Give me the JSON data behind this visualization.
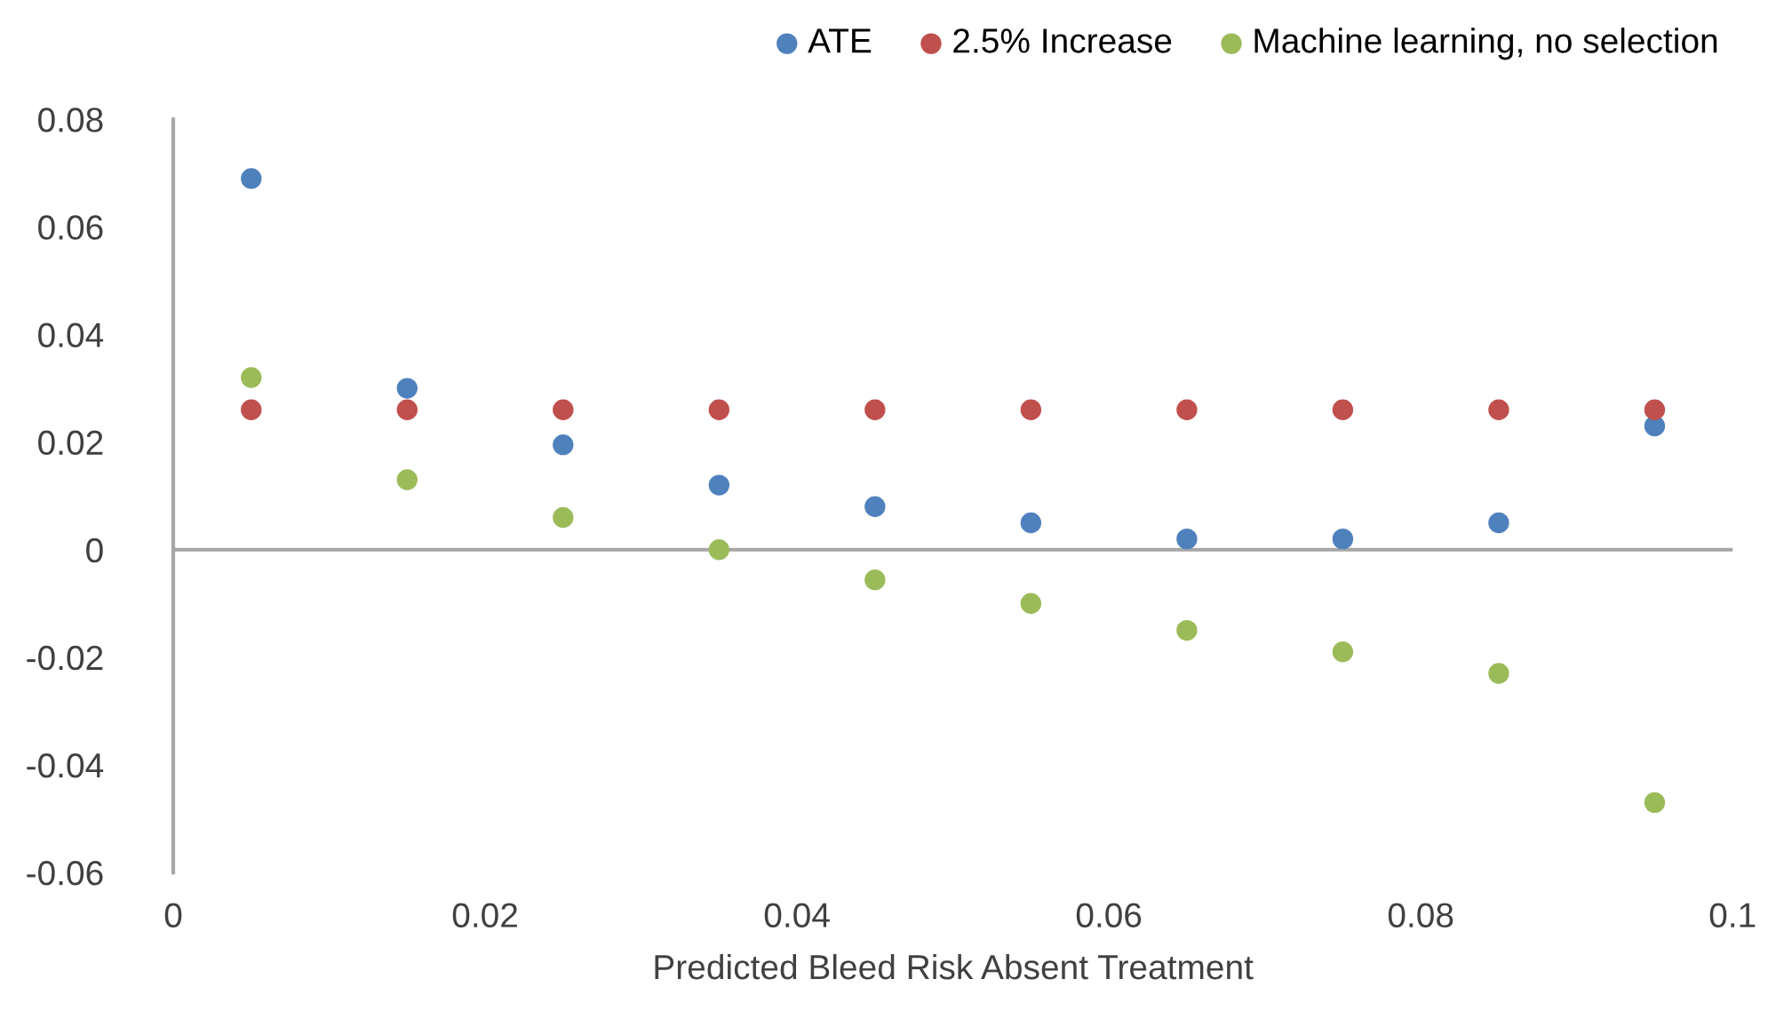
{
  "chart_data": {
    "type": "scatter",
    "xlabel": "Predicted Bleed Risk Absent Treatment",
    "x": [
      0.005,
      0.015,
      0.025,
      0.035,
      0.045,
      0.055,
      0.065,
      0.075,
      0.085,
      0.095
    ],
    "series": [
      {
        "name": "ATE",
        "color": "#4f81bd",
        "values": [
          0.069,
          0.03,
          0.0195,
          0.012,
          0.008,
          0.005,
          0.002,
          0.002,
          0.005,
          0.023
        ]
      },
      {
        "name": "2.5% Increase",
        "color": "#c0504d",
        "values": [
          0.026,
          0.026,
          0.026,
          0.026,
          0.026,
          0.026,
          0.026,
          0.026,
          0.026,
          0.026
        ]
      },
      {
        "name": "Machine learning, no selection",
        "color": "#9bbb59",
        "values": [
          0.032,
          0.013,
          0.006,
          0.0,
          -0.0056,
          -0.01,
          -0.015,
          -0.019,
          -0.023,
          -0.047
        ]
      }
    ],
    "xlim": [
      0,
      0.1
    ],
    "xticks": [
      0,
      0.02,
      0.04,
      0.06,
      0.08,
      0.1
    ],
    "ylim": [
      -0.06,
      0.08
    ],
    "yticks": [
      -0.06,
      -0.04,
      -0.02,
      0,
      0.02,
      0.04,
      0.06,
      0.08
    ],
    "ref_lines": [
      {
        "axis": "y",
        "value": 0,
        "color": "#a6a6a6"
      }
    ],
    "grid": false,
    "legend": "top right",
    "marker": "circle"
  }
}
